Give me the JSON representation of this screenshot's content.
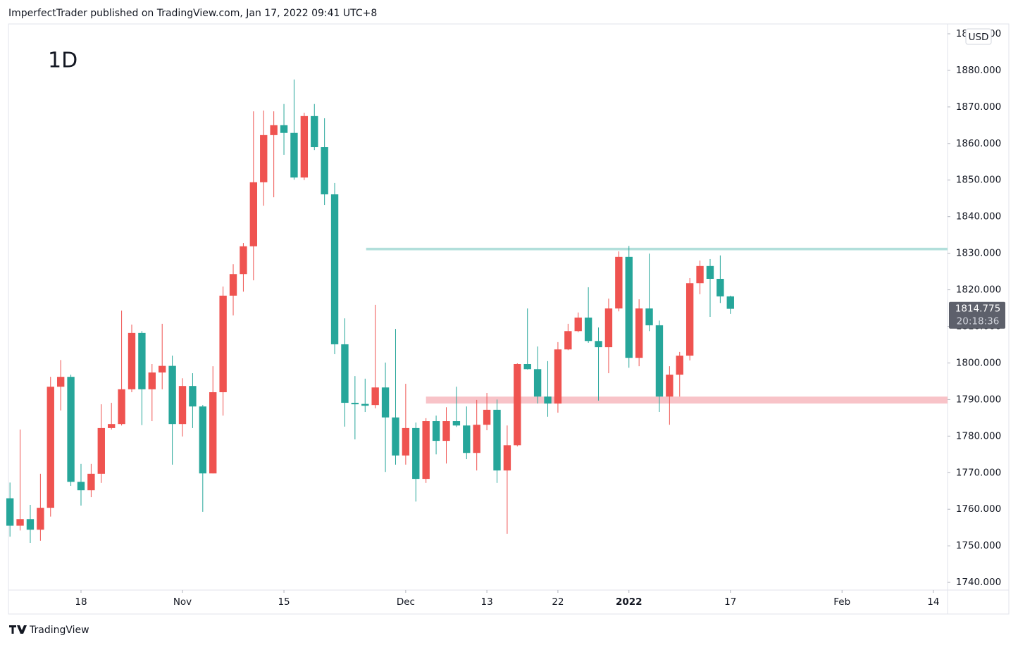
{
  "header": {
    "text": "ImperfectTrader published on TradingView.com, Jan 17, 2022 09:41 UTC+8"
  },
  "footer": {
    "text": "TradingView"
  },
  "chart_data": {
    "type": "candlestick",
    "interval": "1D",
    "currency": "USD",
    "up_color": "#ef5350",
    "down_color": "#26a69a",
    "grid": false,
    "open": [
      1763,
      1755.5,
      1757.3,
      1754.4,
      1760.4,
      1793.5,
      1796.2,
      1767.5,
      1765.2,
      1769.7,
      1782.2,
      1783.3,
      1792.8,
      1808.2,
      1792.8,
      1797.4,
      1799.2,
      1783.3,
      1793.7,
      1788.1,
      1769.8,
      1792,
      1818.4,
      1824.3,
      1831.9,
      1849.4,
      1862.3,
      1865,
      1862.9,
      1850.7,
      1867.5,
      1859,
      1846.1,
      1805.1,
      1789.1,
      1788.8,
      1788.5,
      1793.3,
      1785.1,
      1774.7,
      1782.2,
      1768.3,
      1784.1,
      1778.7,
      1784.1,
      1782.9,
      1775.4,
      1783.1,
      1787.2,
      1770.6,
      1777.5,
      1799.7,
      1798.3,
      1790.8,
      1788.9,
      1803.7,
      1808.7,
      1812.4,
      1806,
      1804.3,
      1814.9,
      1829,
      1801.4,
      1814.9,
      1810.3,
      1790.8,
      1796.8,
      1802,
      1821.8,
      1826.5,
      1823,
      1818.2
    ],
    "high": [
      1767.3,
      1781.8,
      1761.2,
      1769.7,
      1796.2,
      1800.8,
      1796.8,
      1772.4,
      1772.4,
      1788.7,
      1789.1,
      1814.3,
      1810.5,
      1808.7,
      1799.7,
      1810.7,
      1802,
      1795.8,
      1797.2,
      1788.5,
      1799.1,
      1820.9,
      1827,
      1832.8,
      1868.8,
      1869,
      1868.8,
      1870.8,
      1877.5,
      1868.4,
      1870.8,
      1866.9,
      1849.2,
      1812.2,
      1796.4,
      1795.7,
      1815.9,
      1800.1,
      1809.3,
      1794.3,
      1783.7,
      1784.9,
      1785.6,
      1787.9,
      1793.5,
      1788.1,
      1789.9,
      1791.8,
      1790,
      1782.9,
      1799.9,
      1814.9,
      1804.5,
      1800.5,
      1805.7,
      1810.7,
      1813.8,
      1820.7,
      1809.7,
      1817.6,
      1830.5,
      1832,
      1817.4,
      1829.9,
      1811.6,
      1799.1,
      1803,
      1823.2,
      1828,
      1828.4,
      1829.4,
      1818.4
    ],
    "low": [
      1752.5,
      1754.2,
      1750.8,
      1751.4,
      1758,
      1787,
      1766.4,
      1761,
      1763.3,
      1767.2,
      1781.8,
      1782.9,
      1792,
      1783,
      1784.1,
      1792.8,
      1772.2,
      1779.9,
      1782.2,
      1759.3,
      1769.8,
      1785.6,
      1813,
      1819.5,
      1822.6,
      1843,
      1845.3,
      1856.9,
      1850.1,
      1850,
      1858.2,
      1843.2,
      1802.4,
      1782.6,
      1779.1,
      1786.6,
      1787.6,
      1770.2,
      1772.2,
      1772.2,
      1762.1,
      1767.2,
      1775,
      1772.5,
      1782.5,
      1773.7,
      1770.6,
      1781.6,
      1767.2,
      1753.3,
      1777.2,
      1798.2,
      1788.9,
      1785.3,
      1786.4,
      1803.5,
      1808.4,
      1805.5,
      1789.7,
      1797.2,
      1814.1,
      1798.7,
      1799.1,
      1808.7,
      1786.6,
      1783.1,
      1790.8,
      1800.7,
      1818.8,
      1812.6,
      1816.4,
      1813.4
    ],
    "close": [
      1755.5,
      1757.3,
      1754.4,
      1760.4,
      1793.5,
      1796.2,
      1767.5,
      1765.2,
      1769.7,
      1782.2,
      1783.3,
      1792.8,
      1808.2,
      1792.8,
      1797.4,
      1799.2,
      1783.3,
      1793.7,
      1788.1,
      1769.8,
      1792,
      1818.4,
      1824.3,
      1831.9,
      1849.4,
      1862.3,
      1865,
      1862.9,
      1850.7,
      1867.5,
      1859,
      1846.1,
      1805.1,
      1789.1,
      1788.7,
      1788.3,
      1793.3,
      1785.1,
      1774.7,
      1782.2,
      1768.3,
      1784.1,
      1778.7,
      1784.1,
      1782.9,
      1775.4,
      1783.1,
      1787.2,
      1770.6,
      1777.5,
      1799.7,
      1798.3,
      1790.8,
      1788.9,
      1803.7,
      1808.7,
      1812.4,
      1806,
      1804.3,
      1814.9,
      1829,
      1801.4,
      1814.9,
      1810.3,
      1790.8,
      1796.8,
      1802,
      1821.8,
      1826.5,
      1823,
      1818.2,
      1814.8
    ],
    "xlim": [
      -0.15,
      92.4
    ],
    "xticks": [
      {
        "value": 7,
        "label": "18"
      },
      {
        "value": 17,
        "label": "Nov"
      },
      {
        "value": 27,
        "label": "15"
      },
      {
        "value": 39,
        "label": "Dec"
      },
      {
        "value": 47,
        "label": "13"
      },
      {
        "value": 54,
        "label": "22"
      },
      {
        "value": 61,
        "label": "2022"
      },
      {
        "value": 71,
        "label": "17"
      },
      {
        "value": 82,
        "label": "Feb"
      },
      {
        "value": 91,
        "label": "14"
      }
    ],
    "ylim": [
      1737.9,
      1892.5
    ],
    "yticks": [
      {
        "value": 1740,
        "label": "1740.000"
      },
      {
        "value": 1750,
        "label": "1750.000"
      },
      {
        "value": 1760,
        "label": "1760.000"
      },
      {
        "value": 1770,
        "label": "1770.000"
      },
      {
        "value": 1780,
        "label": "1780.000"
      },
      {
        "value": 1790,
        "label": "1790.000"
      },
      {
        "value": 1800,
        "label": "1800.000"
      },
      {
        "value": 1810,
        "label": "1810.000"
      },
      {
        "value": 1820,
        "label": "1820.000"
      },
      {
        "value": 1830,
        "label": "1830.000"
      },
      {
        "value": 1840,
        "label": "1840.000"
      },
      {
        "value": 1850,
        "label": "1850.000"
      },
      {
        "value": 1860,
        "label": "1860.000"
      },
      {
        "value": 1870,
        "label": "1870.000"
      },
      {
        "value": 1880,
        "label": "1880.000"
      },
      {
        "value": 1890,
        "label": "1890.000"
      }
    ],
    "zones": [
      {
        "from": 1830.8,
        "to": 1831.5,
        "start": 35.1,
        "color": "#b2dfdb"
      },
      {
        "from": 1788.9,
        "to": 1790.8,
        "start": 41,
        "color": "#f8c3c8"
      }
    ],
    "last_price": {
      "value": 1814.775,
      "label": "1814.775",
      "countdown": "20:18:36"
    }
  }
}
